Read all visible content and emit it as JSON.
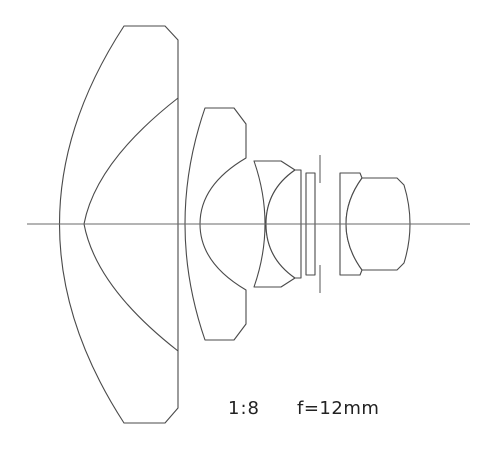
{
  "specs": {
    "aperture": "1:8",
    "focal_length": "f=12mm"
  }
}
